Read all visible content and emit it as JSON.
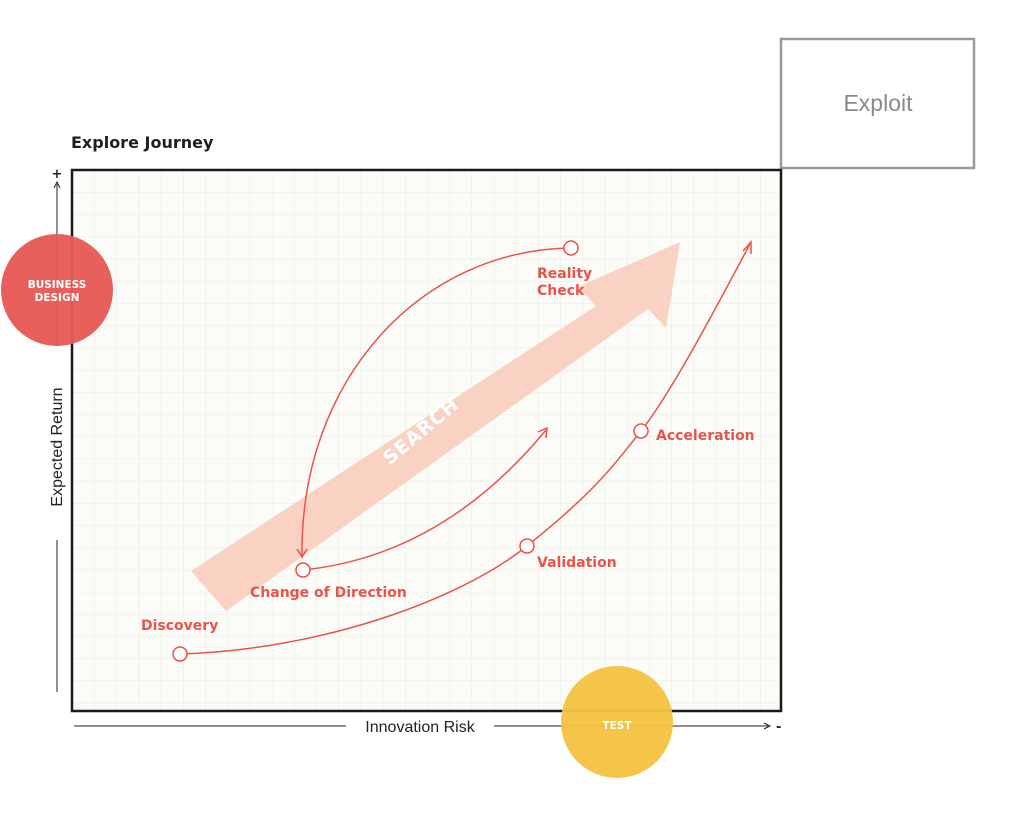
{
  "title": "Explore Journey",
  "exploit_label": "Exploit",
  "axes": {
    "y_label": "Expected Return",
    "x_label": "Innovation Risk",
    "y_plus": "+",
    "x_minus": "-"
  },
  "badges": {
    "business_design_line1": "BUSINESS",
    "business_design_line2": "DESIGN",
    "test": "TEST"
  },
  "search_label": "SEARCH",
  "stages": {
    "discovery": "Discovery",
    "change_of_direction": "Change of Direction",
    "reality_check_line1": "Reality",
    "reality_check_line2": "Check",
    "validation": "Validation",
    "acceleration": "Acceleration"
  },
  "colors": {
    "accent_red": "#e8544b",
    "badge_red": "#e65a54",
    "badge_yellow": "#f5c342",
    "search_arrow": "#f9cdbc",
    "grid": "#e9e9e3",
    "plot_bg": "#fbfbf7",
    "frame": "#1a1a1a",
    "exploit_border": "#9a9a9a"
  }
}
